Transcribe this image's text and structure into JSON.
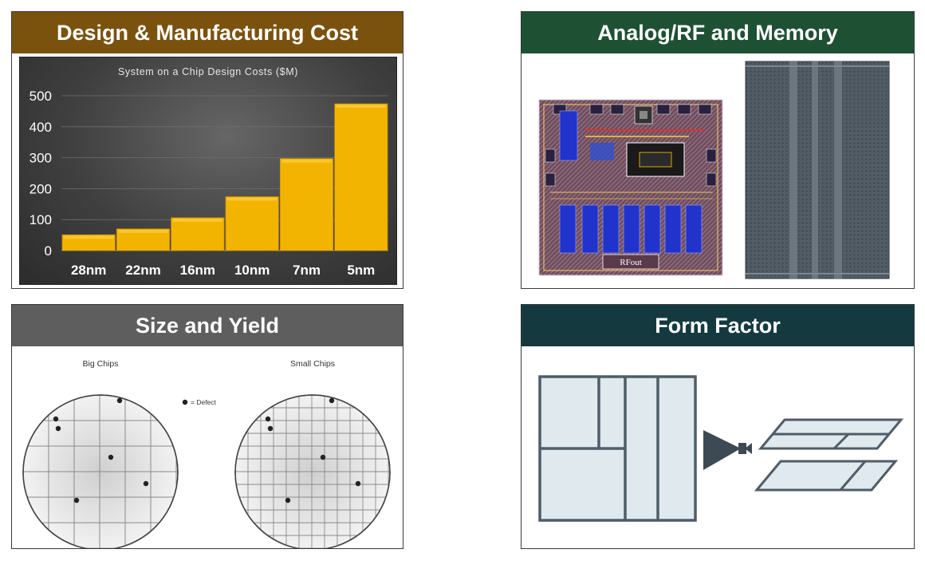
{
  "panels": {
    "cost": {
      "title": "Design & Manufacturing Cost",
      "header_color": "#7a520e"
    },
    "analog": {
      "title": "Analog/RF and Memory",
      "header_color": "#1e5034",
      "chip_label": "RFout"
    },
    "size": {
      "title": "Size and Yield",
      "header_color": "#5e5e5e",
      "big_label": "Big Chips",
      "small_label": "Small Chips",
      "defect_legend": "= Defect"
    },
    "form": {
      "title": "Form Factor",
      "header_color": "#143a40"
    }
  },
  "chart_data": {
    "type": "bar",
    "title": "System on a Chip Design Costs ($M)",
    "categories": [
      "28nm",
      "22nm",
      "16nm",
      "10nm",
      "7nm",
      "5nm"
    ],
    "values": [
      51,
      70,
      106,
      174,
      297,
      474
    ],
    "ylim": [
      0,
      500
    ],
    "yticks": [
      "0",
      "100",
      "200",
      "300",
      "400",
      "500"
    ],
    "bar_color": "#f3b400",
    "grid": true
  }
}
